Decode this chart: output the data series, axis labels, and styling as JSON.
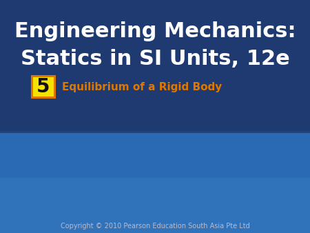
{
  "title_line1": "Engineering Mechanics:",
  "title_line2": "Statics in SI Units, 12e",
  "chapter_number": "5",
  "chapter_title": "Equilibrium of a Rigid Body",
  "copyright": "Copyright © 2010 Pearson Education South Asia Pte Ltd",
  "bg_color": "#1e3a70",
  "title_color": "#ffffff",
  "chapter_num_color": "#111111",
  "chapter_title_color": "#e07800",
  "box_fill_color": "#f5e200",
  "box_border_color": "#e07800",
  "copyright_color": "#bbbbcc",
  "title_fontsize": 22,
  "chapter_num_fontsize": 20,
  "chapter_title_fontsize": 11,
  "copyright_fontsize": 7,
  "bridge_dark_color": "#222222",
  "bridge_white_color": "#e8e8e8",
  "bridge_cable_color": "#aaaaaa",
  "sky_color": "#2a6ab5",
  "sky_bottom_color": "#4488cc"
}
